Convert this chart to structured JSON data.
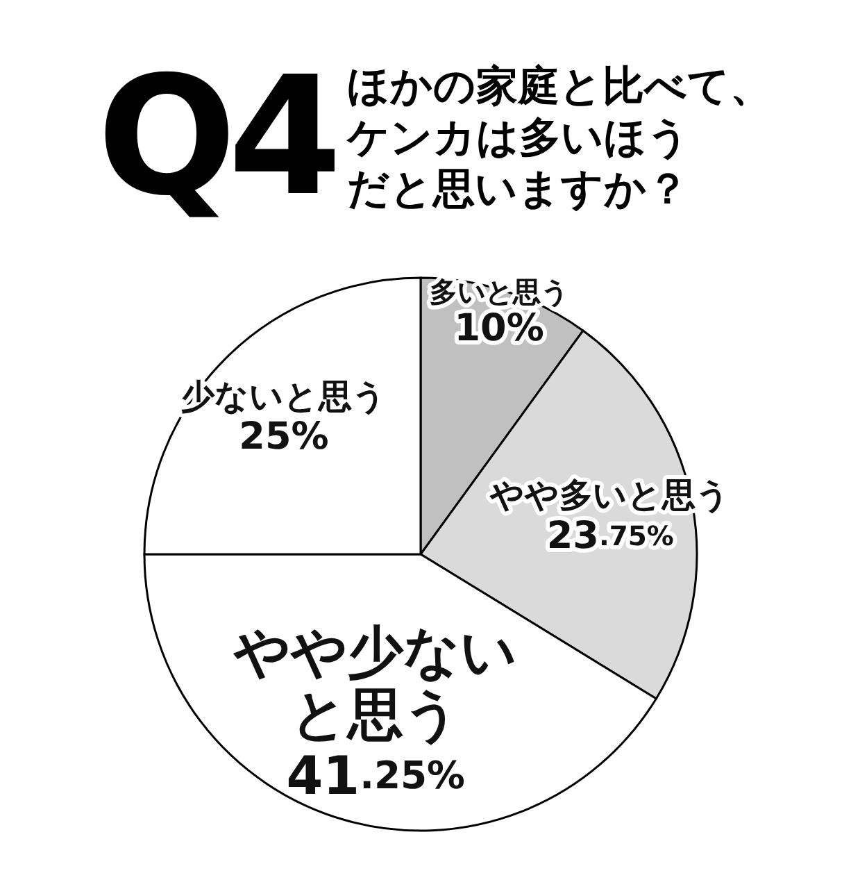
{
  "chart_data": {
    "type": "pie",
    "title": "Q4",
    "subtitle": "ほかの家庭と比べて、ケンカは多いほうだと思いますか？",
    "categories": [
      "多いと思う",
      "やや多いと思う",
      "やや少ないと思う",
      "少ないと思う"
    ],
    "values": [
      10,
      23.75,
      41.25,
      25
    ],
    "colors": [
      "#c0c0c0",
      "#dadada",
      "#ffffff",
      "#ffffff"
    ],
    "value_labels": [
      "10%",
      "23.75%",
      "41.25%",
      "25%"
    ]
  }
}
